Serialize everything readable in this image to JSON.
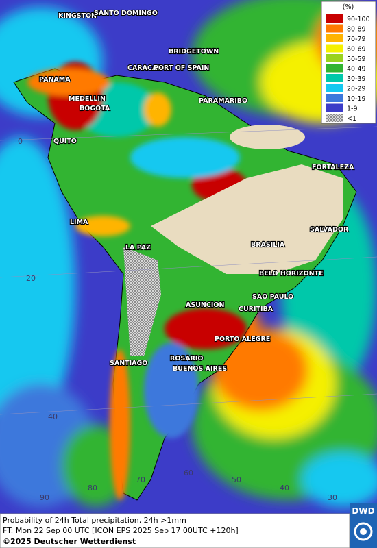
{
  "legend": {
    "title": "(%)",
    "items": [
      {
        "label": "90-100",
        "color": "#c80000"
      },
      {
        "label": "80-89",
        "color": "#ff7a00"
      },
      {
        "label": "70-79",
        "color": "#ffb400"
      },
      {
        "label": "60-69",
        "color": "#f5f000"
      },
      {
        "label": "50-59",
        "color": "#9ad21e"
      },
      {
        "label": "40-49",
        "color": "#32b432"
      },
      {
        "label": "30-39",
        "color": "#00c8aa"
      },
      {
        "label": "20-29",
        "color": "#14c8f0"
      },
      {
        "label": "10-19",
        "color": "#3c78dc"
      },
      {
        "label": "1-9",
        "color": "#3c3cc8"
      },
      {
        "label": "<1",
        "color": "#b4b4b4"
      }
    ]
  },
  "cities": [
    "KINGSTON",
    "SANTO DOMINGO",
    "BRIDGETOWN",
    "CARACAS",
    "PORT OF SPAIN",
    "PANAMA",
    "MEDELLIN",
    "BOGOTA",
    "PARAMARIBO",
    "QUITO",
    "FORTALEZA",
    "LIMA",
    "SALVADOR",
    "LA PAZ",
    "BRASILIA",
    "BELO HORIZONTE",
    "SAO PAULO",
    "ASUNCION",
    "CURITIBA",
    "PORTO ALEGRE",
    "SANTIAGO",
    "ROSARIO",
    "BUENOS AIRES"
  ],
  "grid_labels": [
    "0",
    "20",
    "40",
    "90",
    "80",
    "70",
    "60",
    "50",
    "40",
    "30"
  ],
  "footer": {
    "line1": "Probability of 24h Total precipitation, 24h >1mm",
    "line2": "FT: Mon 22 Sep 00 UTC [ICON EPS 2025 Sep 17 00UTC +120h]",
    "copyright": "©2025 Deutscher Wetterdienst"
  },
  "logo": "DWD"
}
